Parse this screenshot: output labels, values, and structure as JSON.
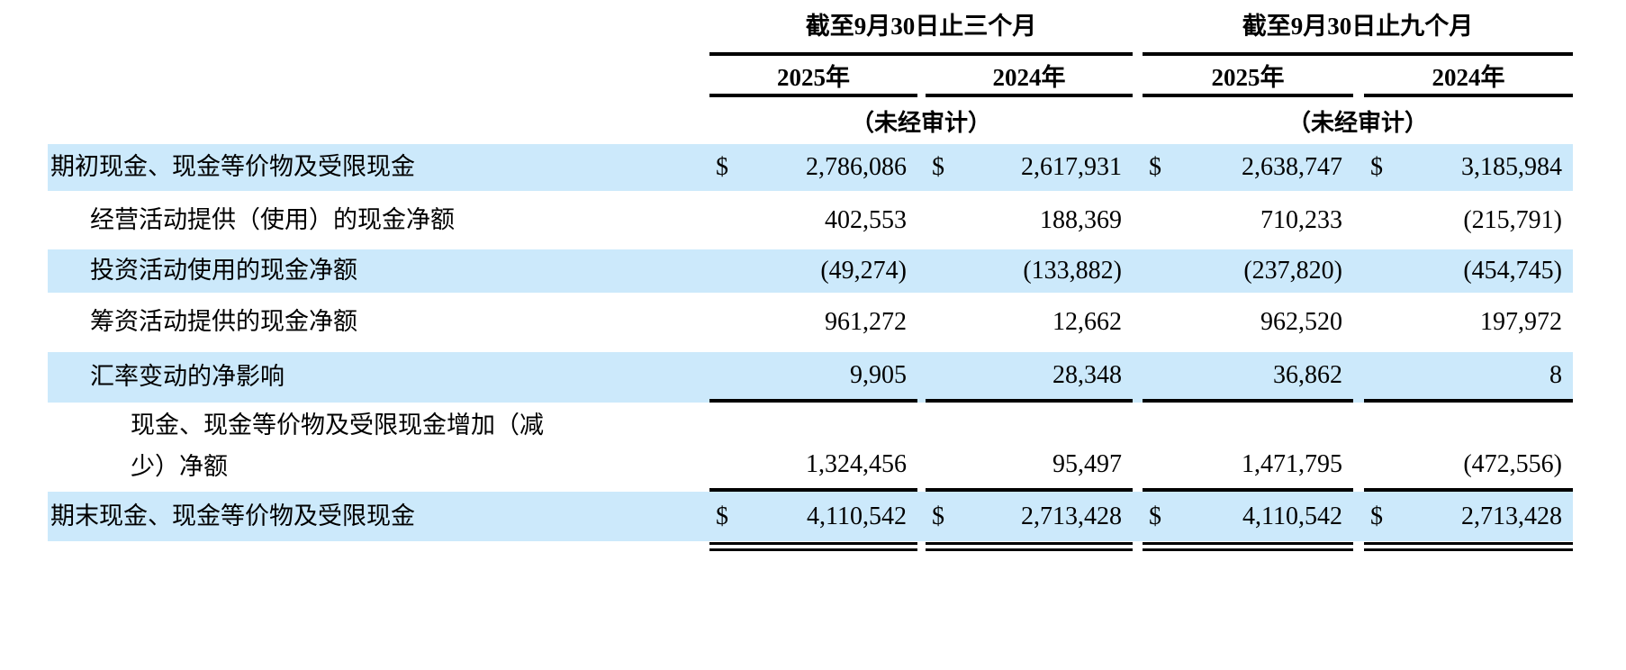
{
  "table": {
    "currency_symbol": "$",
    "highlight_color": "#cce9fb",
    "period_groups": [
      {
        "title": "截至9月30日止三个月",
        "unaudited_note": "（未经审计）"
      },
      {
        "title": "截至9月30日止九个月",
        "unaudited_note": "（未经审计）"
      }
    ],
    "year_headers": [
      "2025年",
      "2024年",
      "2025年",
      "2024年"
    ],
    "rows": [
      {
        "label": "期初现金、现金等价物及受限现金",
        "values": [
          "2,786,086",
          "2,617,931",
          "2,638,747",
          "3,185,984"
        ]
      },
      {
        "label": "经营活动提供（使用）的现金净额",
        "values": [
          "402,553",
          "188,369",
          "710,233",
          "(215,791)"
        ]
      },
      {
        "label": "投资活动使用的现金净额",
        "values": [
          "(49,274)",
          "(133,882)",
          "(237,820)",
          "(454,745)"
        ]
      },
      {
        "label": "筹资活动提供的现金净额",
        "values": [
          "961,272",
          "12,662",
          "962,520",
          "197,972"
        ]
      },
      {
        "label": "汇率变动的净影响",
        "values": [
          "9,905",
          "28,348",
          "36,862",
          "8"
        ]
      },
      {
        "label": "现金、现金等价物及受限现金增加（减少）净额",
        "values": [
          "1,324,456",
          "95,497",
          "1,471,795",
          "(472,556)"
        ]
      },
      {
        "label": "期末现金、现金等价物及受限现金",
        "values": [
          "4,110,542",
          "2,713,428",
          "4,110,542",
          "2,713,428"
        ]
      }
    ]
  }
}
